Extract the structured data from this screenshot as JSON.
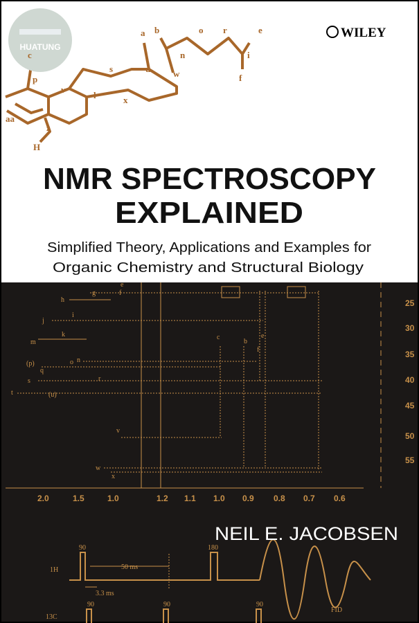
{
  "publisher": "WILEY",
  "watermark": "HUATUNG",
  "title": [
    "NMR SPECTROSCOPY",
    "EXPLAINED"
  ],
  "subtitle": [
    "Simplified Theory, Applications and Examples for",
    "Organic Chemistry and Structural Biology"
  ],
  "author": "NEIL E. JACOBSEN",
  "molecule": {
    "labels": [
      "a",
      "b",
      "o",
      "r",
      "e",
      "c",
      "n",
      "i",
      "s",
      "u",
      "w",
      "f",
      "p",
      "v",
      "l",
      "x",
      "aa",
      "z",
      "H"
    ]
  },
  "spectrum": {
    "y_ticks": [
      "25",
      "30",
      "35",
      "40",
      "45",
      "50",
      "55"
    ],
    "x_ticks_left": [
      "2.0",
      "1.5",
      "1.0"
    ],
    "x_ticks_right": [
      "1.2",
      "1.1",
      "1.0",
      "0.9",
      "0.8",
      "0.7",
      "0.6"
    ],
    "peak_labels": [
      "e",
      "f",
      "g",
      "h",
      "i",
      "j",
      "k",
      "m",
      "n",
      "o",
      "(p)",
      "q",
      "r",
      "s",
      "t",
      "(u)",
      "v",
      "w",
      "x",
      "c",
      "b",
      "e",
      "f"
    ]
  },
  "pulse": {
    "labels": [
      "90",
      "180",
      "1H",
      "50 ms",
      "3.3 ms",
      "13C",
      "90",
      "90",
      "90",
      "FID"
    ]
  }
}
